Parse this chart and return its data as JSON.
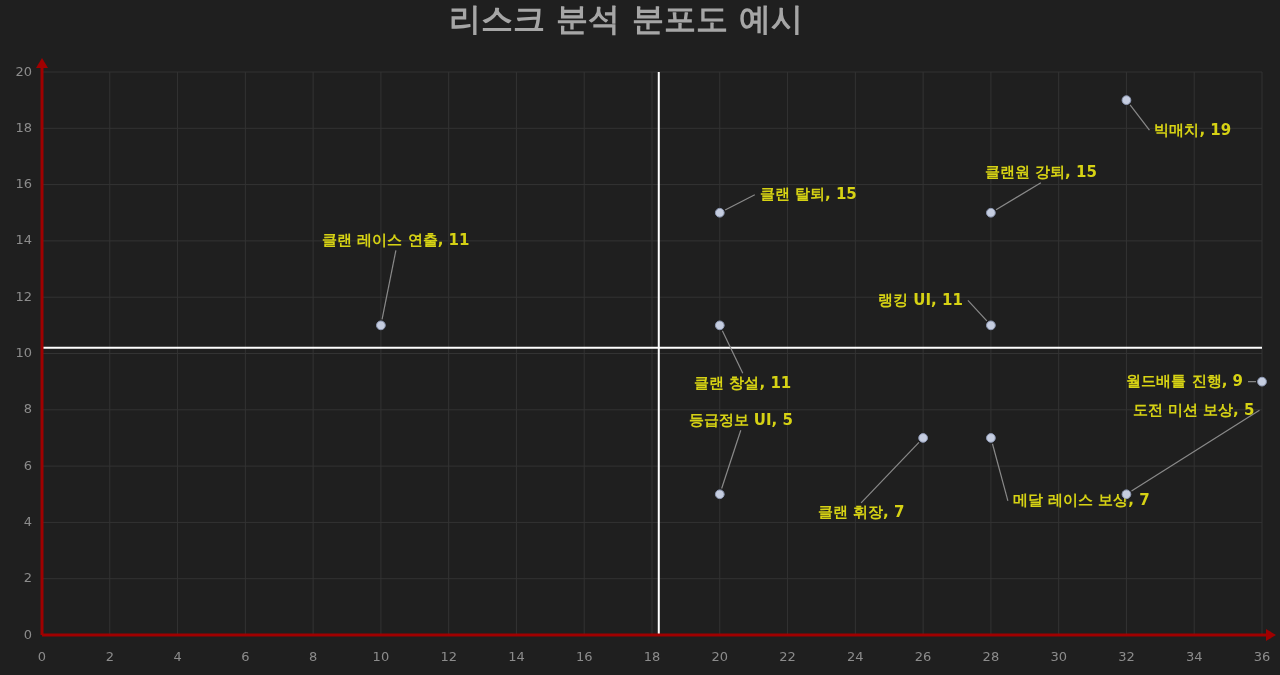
{
  "chart_data": {
    "type": "scatter",
    "title": "리스크 분석 분포도 예시",
    "x": [
      10,
      20,
      20,
      20,
      26,
      28,
      28,
      28,
      32,
      32,
      36
    ],
    "series": [
      {
        "color": "#c5cde0",
        "values": [
          11,
          15,
          11,
          5,
          7,
          15,
          11,
          7,
          19,
          5,
          9
        ],
        "value_labels": [
          "클랜 레이스 연출, 11",
          "클랜 탈퇴, 15",
          "클랜 창설, 11",
          "등급정보 UI, 5",
          "클랜 휘장, 7",
          "클랜원 강퇴, 15",
          "랭킹 UI, 11",
          "메달 레이스 보상, 7",
          "빅매치, 19",
          "도전 미션 보상, 5",
          "월드배틀 진행, 9"
        ]
      }
    ],
    "xlim": [
      0,
      36
    ],
    "ylim": [
      0,
      20
    ],
    "xticks": [
      0,
      2,
      4,
      6,
      8,
      10,
      12,
      14,
      16,
      18,
      20,
      22,
      24,
      26,
      28,
      30,
      32,
      34,
      36
    ],
    "yticks": [
      0,
      2,
      4,
      6,
      8,
      10,
      12,
      14,
      16,
      18,
      20
    ],
    "ref_lines": [
      {
        "axis": "x",
        "value": 18.2,
        "color": "#ffffff"
      },
      {
        "axis": "y",
        "value": 10.2,
        "color": "#ffffff"
      }
    ],
    "grid": true,
    "marker": "circle"
  }
}
